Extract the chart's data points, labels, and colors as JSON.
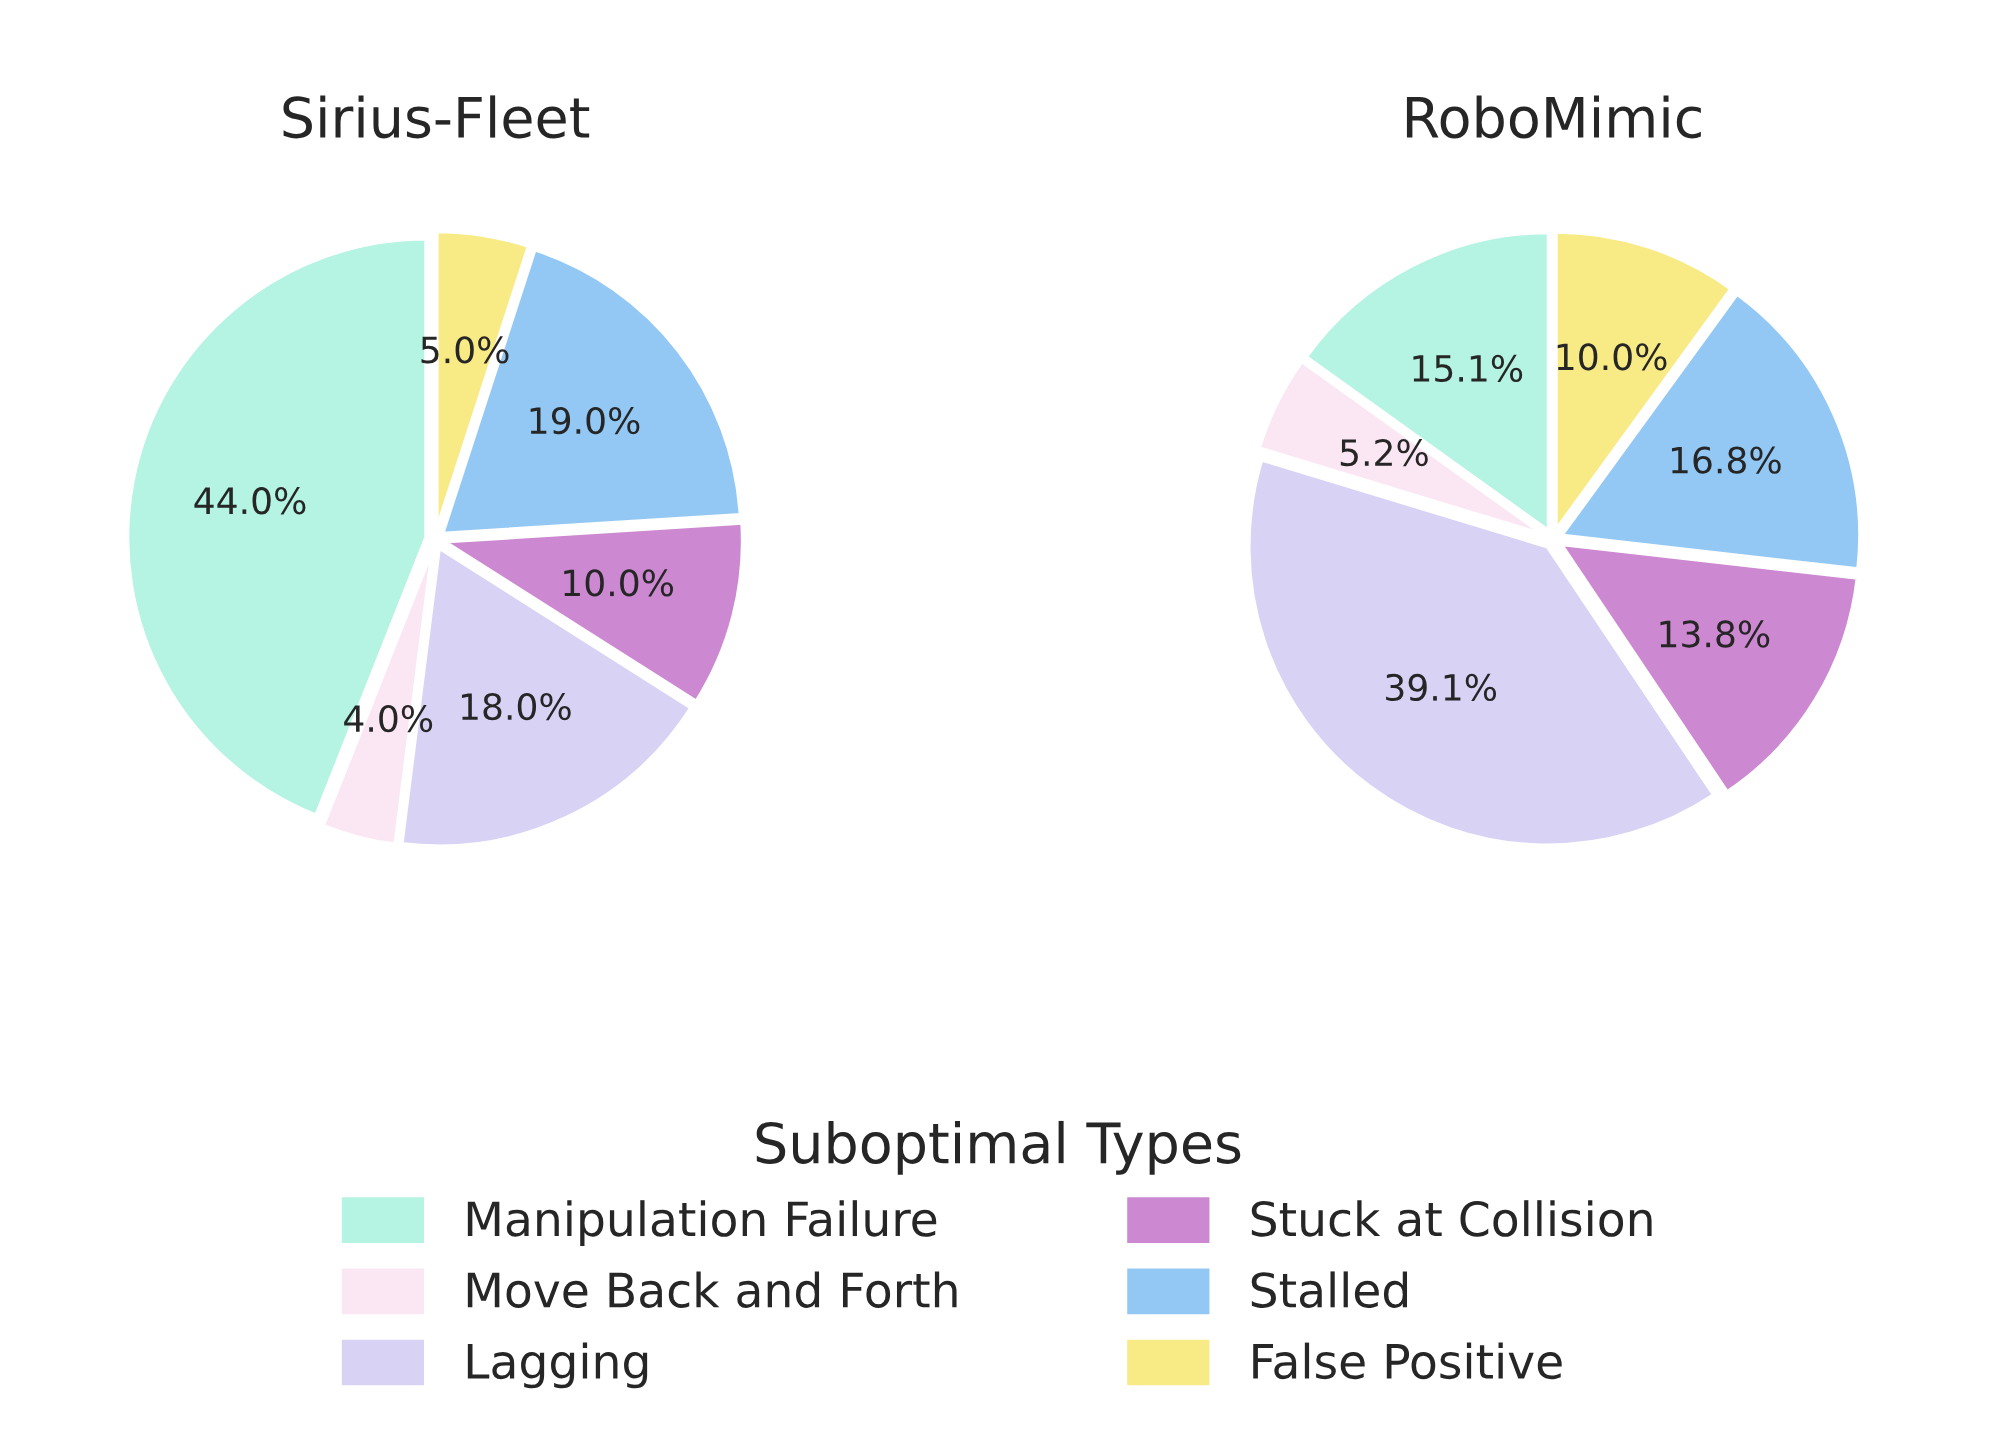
{
  "chart_data": [
    {
      "type": "pie",
      "title": "Sirius-Fleet",
      "categories": [
        "Manipulation Failure",
        "Move Back and Forth",
        "Lagging",
        "Stuck at Collision",
        "Stalled",
        "False Positive"
      ],
      "values": [
        44.0,
        4.0,
        18.0,
        10.0,
        19.0,
        5.0
      ],
      "value_labels": [
        "44.0%",
        "4.0%",
        "18.0%",
        "10.0%",
        "19.0%",
        "5.0%"
      ],
      "colors": [
        "#b5f3e2",
        "#fbe6f4",
        "#d8d2f5",
        "#cc88d0",
        "#93c8f4",
        "#f8ea84"
      ],
      "legend": "bottom",
      "legend_title": "Suboptimal Types"
    },
    {
      "type": "pie",
      "title": "RoboMimic",
      "values": [
        15.1,
        5.2,
        39.1,
        13.8,
        16.8,
        10.0
      ],
      "value_labels": [
        "15.1%",
        "5.2%",
        "39.1%",
        "13.8%",
        "16.8%",
        "10.0%"
      ],
      "colors": [
        "#b5f3e2",
        "#fbe6f4",
        "#d8d2f5",
        "#cc88d0",
        "#93c8f4",
        "#f8ea84"
      ]
    }
  ]
}
